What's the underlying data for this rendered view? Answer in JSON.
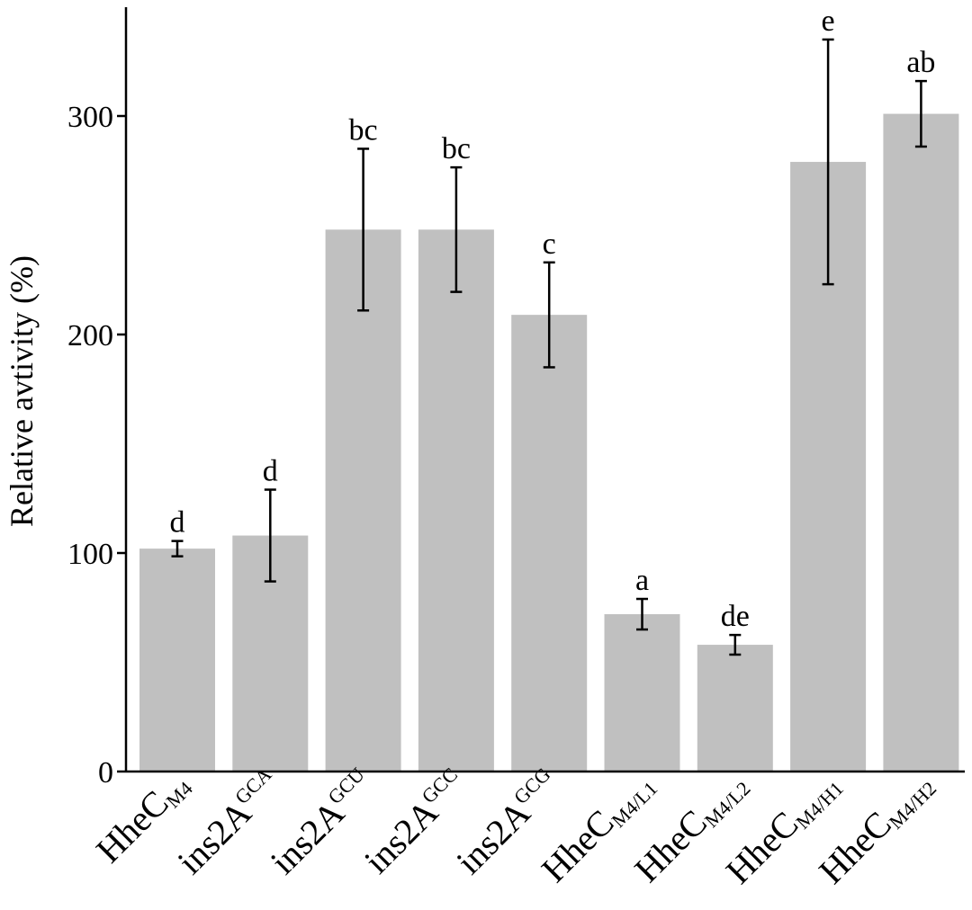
{
  "chart_data": {
    "type": "bar",
    "ylabel": "Relative avtivity (%)",
    "xlabel": "",
    "ylim": [
      0,
      350
    ],
    "yticks": [
      0,
      100,
      200,
      300
    ],
    "grid": false,
    "bar_color": "#c0c0c0",
    "categories": [
      {
        "base": "HheC",
        "script": "M4",
        "script_type": "sub"
      },
      {
        "base": "ins2A",
        "script": "GCA",
        "script_type": "sup"
      },
      {
        "base": "ins2A",
        "script": "GCU",
        "script_type": "sup"
      },
      {
        "base": "ins2A",
        "script": "GCC",
        "script_type": "sup"
      },
      {
        "base": "ins2A",
        "script": "GCG",
        "script_type": "sup"
      },
      {
        "base": "HheC",
        "script": "M4/L1",
        "script_type": "sub"
      },
      {
        "base": "HheC",
        "script": "M4/L2",
        "script_type": "sub"
      },
      {
        "base": "HheC",
        "script": "M4/H1",
        "script_type": "sub"
      },
      {
        "base": "HheC",
        "script": "M4/H2",
        "script_type": "sub"
      }
    ],
    "values": [
      102,
      108,
      248,
      248,
      209,
      72,
      58,
      279,
      301
    ],
    "errors": [
      3.5,
      21,
      37,
      28.5,
      24,
      7,
      4.5,
      56,
      15
    ],
    "significance": [
      "d",
      "d",
      "bc",
      "bc",
      "c",
      "a",
      "de",
      "e",
      "ab"
    ]
  }
}
